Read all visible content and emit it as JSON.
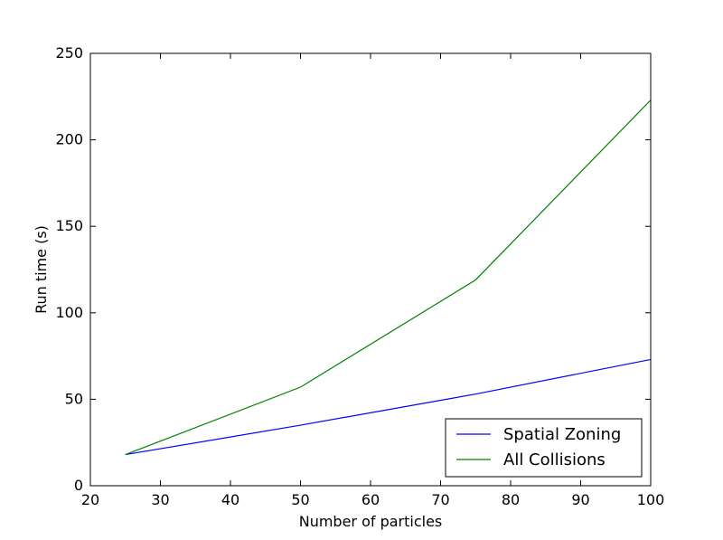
{
  "chart_data": {
    "type": "line",
    "xlabel": "Number of particles",
    "ylabel": "Run time (s)",
    "xlim": [
      20,
      100
    ],
    "ylim": [
      0,
      250
    ],
    "xticks": [
      20,
      30,
      40,
      50,
      60,
      70,
      80,
      90,
      100
    ],
    "yticks": [
      0,
      50,
      100,
      150,
      200,
      250
    ],
    "grid": false,
    "legend_position": "lower-right",
    "x": [
      25,
      50,
      75,
      100
    ],
    "series": [
      {
        "name": "Spatial Zoning",
        "color": "#0000ff",
        "values": [
          18,
          35,
          53,
          73
        ]
      },
      {
        "name": "All Collisions",
        "color": "#008000",
        "values": [
          18,
          57,
          119,
          223
        ]
      }
    ]
  }
}
